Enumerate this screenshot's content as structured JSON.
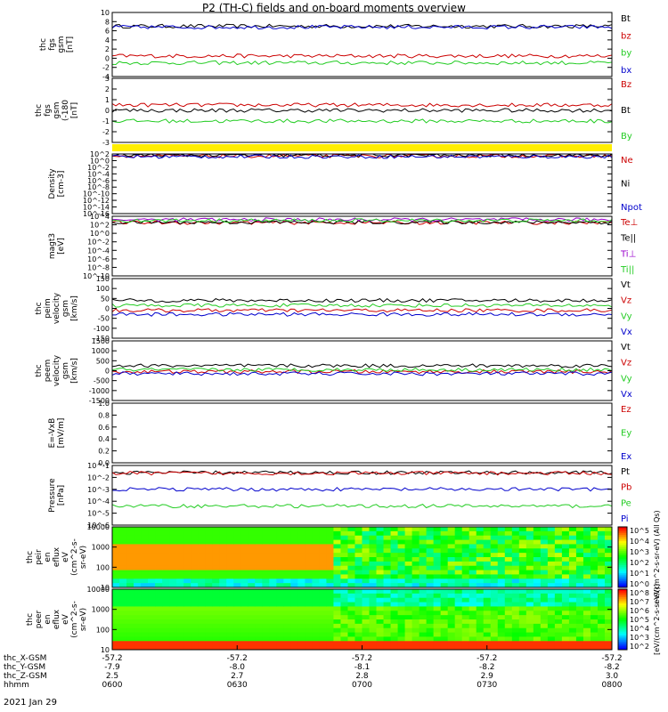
{
  "title": "P2 (TH-C) fields and on-board moments overview",
  "date_label": "2021 Jan 29",
  "colors": {
    "black": "#000000",
    "red": "#cc0000",
    "green": "#22cc22",
    "blue": "#0000cc",
    "yellow": "#ffee00"
  },
  "chart_data": [
    {
      "type": "line",
      "ylabel": [
        "thc",
        "fgs",
        "gsm",
        "[nT]"
      ],
      "yticks": [
        "10",
        "8",
        "6",
        "4",
        "2",
        "0",
        "-2",
        "-4"
      ],
      "ylim": [
        -4,
        10
      ],
      "series": [
        {
          "name": "Bt",
          "color": "black",
          "level": 7
        },
        {
          "name": "bz",
          "color": "red",
          "level": 0.5
        },
        {
          "name": "by",
          "color": "green",
          "level": -1
        },
        {
          "name": "bx",
          "color": "blue",
          "level": 6.8
        }
      ]
    },
    {
      "type": "line",
      "ylabel": [
        "thc",
        "fgs",
        "gsm",
        "(-180",
        "[nT]"
      ],
      "yticks": [
        "3",
        "2",
        "1",
        "0",
        "-1",
        "-2",
        "-3"
      ],
      "ylim": [
        -3,
        3
      ],
      "series": [
        {
          "name": "Bz",
          "color": "red",
          "level": 0.5
        },
        {
          "name": "Bt",
          "color": "black",
          "level": 0
        },
        {
          "name": "By",
          "color": "green",
          "level": -1
        }
      ]
    },
    {
      "type": "line",
      "ylabel": [
        "Density",
        "[cm-3]"
      ],
      "yticks": [
        "10^2",
        "10^0",
        "10^-2",
        "10^-4",
        "10^-6",
        "10^-8",
        "10^-10",
        "10^-12",
        "10^-14",
        "10^-16"
      ],
      "ylim": [
        -16,
        2
      ],
      "series": [
        {
          "name": "Ne",
          "color": "red",
          "level": 1.4
        },
        {
          "name": "Ni",
          "color": "black",
          "level": 1.6
        },
        {
          "name": "Npot",
          "color": "blue",
          "level": 1.2
        }
      ]
    },
    {
      "type": "line",
      "ylabel": [
        "magt3",
        "[eV]"
      ],
      "yticks": [
        "10^4",
        "10^2",
        "10^0",
        "10^-2",
        "10^-4",
        "10^-6",
        "10^-8",
        "10^-10"
      ],
      "ylim": [
        -10,
        4
      ],
      "series": [
        {
          "name": "Te⊥",
          "color": "red",
          "level": 2.5
        },
        {
          "name": "Te||",
          "color": "black",
          "level": 2.6
        },
        {
          "name": "Ti⊥",
          "color": "purple",
          "level": 3.2
        },
        {
          "name": "Ti||",
          "color": "green",
          "level": 3.0
        }
      ]
    },
    {
      "type": "line",
      "ylabel": [
        "thc",
        "peim",
        "velocity",
        "gsm",
        "[km/s]"
      ],
      "yticks": [
        "150",
        "100",
        "50",
        "0",
        "-50",
        "-100",
        "-150"
      ],
      "ylim": [
        -150,
        150
      ],
      "series": [
        {
          "name": "Vt",
          "color": "black",
          "level": 40
        },
        {
          "name": "Vz",
          "color": "red",
          "level": -10
        },
        {
          "name": "Vy",
          "color": "green",
          "level": 15
        },
        {
          "name": "Vx",
          "color": "blue",
          "level": -30
        }
      ]
    },
    {
      "type": "line",
      "ylabel": [
        "thc",
        "peem",
        "velocity",
        "gsm",
        "[km/s]"
      ],
      "yticks": [
        "1500",
        "1000",
        "500",
        "0",
        "-500",
        "-1000",
        "-1500"
      ],
      "ylim": [
        -1500,
        1500
      ],
      "series": [
        {
          "name": "Vt",
          "color": "black",
          "level": 250
        },
        {
          "name": "Vz",
          "color": "red",
          "level": -50
        },
        {
          "name": "Vy",
          "color": "green",
          "level": 50
        },
        {
          "name": "Vx",
          "color": "blue",
          "level": -150
        }
      ]
    },
    {
      "type": "line",
      "ylabel": [
        "E=-VxB",
        "[mV/m]"
      ],
      "yticks": [
        "1.0",
        "0.8",
        "0.6",
        "0.4",
        "0.2",
        "0.0"
      ],
      "ylim": [
        0,
        1
      ],
      "series": [
        {
          "name": "Ez",
          "color": "red"
        },
        {
          "name": "Ey",
          "color": "green"
        },
        {
          "name": "Ex",
          "color": "blue"
        }
      ]
    },
    {
      "type": "line",
      "ylabel": [
        "Pressure",
        "[nPa]"
      ],
      "yticks": [
        "10^-1",
        "10^-2",
        "10^-3",
        "10^-4",
        "10^-5",
        "10^-6"
      ],
      "ylim": [
        -6,
        -1
      ],
      "series": [
        {
          "name": "Pt",
          "color": "black",
          "level": -1.6
        },
        {
          "name": "Pb",
          "color": "red",
          "level": -1.65
        },
        {
          "name": "Pe",
          "color": "green",
          "level": -4.4
        },
        {
          "name": "Pi",
          "color": "blue",
          "level": -3.0
        }
      ]
    },
    {
      "type": "heatmap",
      "ylabel": [
        "thc",
        "peir",
        "en",
        "eflux",
        "eV",
        "(cm^2-s-",
        "sr-eV)"
      ],
      "yticks": [
        "10000",
        "1000",
        "100",
        "10"
      ],
      "ylim": [
        1,
        4.3
      ]
    },
    {
      "type": "heatmap",
      "ylabel": [
        "thc",
        "peer",
        "en",
        "eflux",
        "eV",
        "(cm^2-s-",
        "sr-eV)"
      ],
      "yticks": [
        "10000",
        "1000",
        "100",
        "10"
      ],
      "ylim": [
        1,
        4.3
      ]
    }
  ],
  "colorbars": [
    {
      "ticks": [
        "10^5",
        "10^4",
        "10^3",
        "10^2",
        "10^1",
        "10^0"
      ],
      "label": "eV/(cm^2-s-sr-eV) (All Qs)"
    },
    {
      "ticks": [
        "10^8",
        "10^7",
        "10^6",
        "10^5",
        "10^4",
        "10^3",
        "10^2"
      ],
      "label": "[eV/(cm^2-s-sr-eV)]"
    }
  ],
  "footer": {
    "rows": [
      {
        "label": "thc_X-GSM",
        "values": [
          "-57.2",
          "-57.2",
          "-57.2",
          "-57.2",
          "-57.2"
        ]
      },
      {
        "label": "thc_Y-GSM",
        "values": [
          "-7.9",
          "-8.0",
          "-8.1",
          "-8.2",
          "-8.2"
        ]
      },
      {
        "label": "thc_Z-GSM",
        "values": [
          "2.5",
          "2.7",
          "2.8",
          "2.9",
          "3.0"
        ]
      },
      {
        "label": "hhmm",
        "values": [
          "0600",
          "0630",
          "0700",
          "0730",
          "0800"
        ]
      }
    ]
  }
}
